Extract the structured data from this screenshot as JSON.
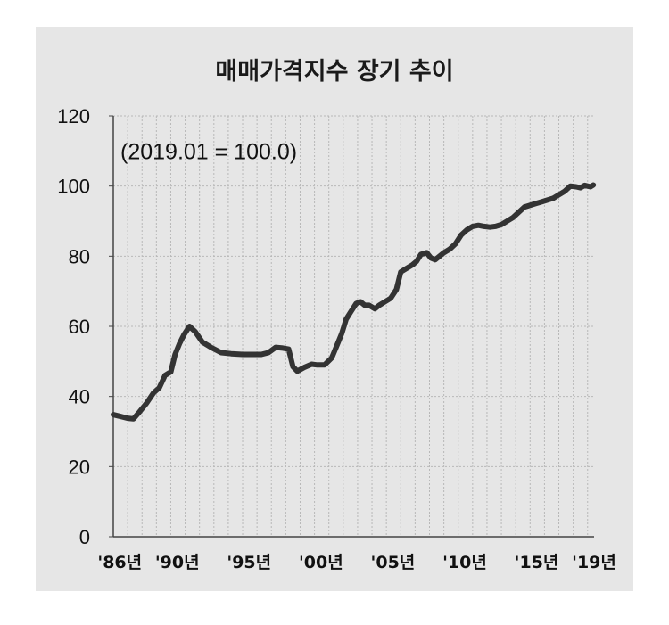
{
  "chart_data": {
    "type": "line",
    "title": "매매가격지수 장기 추이",
    "annotation": "(2019.01 = 100.0)",
    "ylim": [
      0,
      120
    ],
    "y_ticks": [
      "0",
      "20",
      "40",
      "60",
      "80",
      "100",
      "120"
    ],
    "x_tick_labels": [
      {
        "year": 1986,
        "label": "'86년"
      },
      {
        "year": 1990,
        "label": "'90년"
      },
      {
        "year": 1995,
        "label": "'95년"
      },
      {
        "year": 2000,
        "label": "'00년"
      },
      {
        "year": 2005,
        "label": "'05년"
      },
      {
        "year": 2010,
        "label": "'10년"
      },
      {
        "year": 2015,
        "label": "'15년"
      },
      {
        "year": 2019,
        "label": "'19년"
      }
    ],
    "grid": true,
    "series": [
      {
        "color": "#333333",
        "x": [
          1986.0,
          1986.5,
          1987.0,
          1987.4,
          1987.8,
          1988.3,
          1988.8,
          1989.2,
          1989.6,
          1990.0,
          1990.3,
          1990.6,
          1990.9,
          1991.3,
          1991.7,
          1992.2,
          1992.8,
          1993.5,
          1994.2,
          1995.0,
          1995.7,
          1996.3,
          1996.8,
          1997.3,
          1997.8,
          1998.2,
          1998.5,
          1998.8,
          1999.3,
          1999.8,
          2000.2,
          2000.7,
          2001.2,
          2001.6,
          2001.9,
          2002.2,
          2002.5,
          2002.9,
          2003.2,
          2003.5,
          2003.8,
          2004.2,
          2004.5,
          2004.9,
          2005.3,
          2005.7,
          2006.0,
          2006.4,
          2006.8,
          2007.1,
          2007.4,
          2007.8,
          2008.1,
          2008.4,
          2008.7,
          2009.0,
          2009.4,
          2009.8,
          2010.2,
          2010.6,
          2011.0,
          2011.4,
          2011.8,
          2012.2,
          2012.6,
          2013.0,
          2013.4,
          2013.8,
          2014.2,
          2014.6,
          2015.0,
          2015.4,
          2015.8,
          2016.2,
          2016.6,
          2017.0,
          2017.4,
          2017.8,
          2018.2,
          2018.5,
          2018.8,
          2019.0,
          2019.2,
          2019.4
        ],
        "values": [
          34.8,
          34.3,
          33.8,
          33.6,
          35.5,
          38.0,
          41.0,
          42.5,
          46.0,
          47.0,
          52.0,
          55.0,
          57.5,
          60.0,
          58.5,
          55.5,
          54.0,
          52.5,
          52.2,
          52.0,
          52.0,
          52.0,
          52.5,
          54.0,
          53.8,
          53.5,
          48.5,
          47.2,
          48.3,
          49.2,
          49.0,
          49.0,
          51.0,
          55.0,
          58.0,
          62.0,
          64.0,
          66.5,
          67.0,
          66.0,
          66.0,
          65.0,
          66.0,
          67.0,
          68.0,
          70.5,
          75.5,
          76.5,
          77.5,
          78.5,
          80.5,
          81.0,
          79.5,
          79.0,
          80.0,
          81.0,
          82.0,
          83.5,
          86.0,
          87.5,
          88.5,
          88.8,
          88.5,
          88.3,
          88.5,
          89.0,
          90.0,
          91.0,
          92.5,
          94.0,
          94.5,
          95.0,
          95.5,
          96.0,
          96.5,
          97.5,
          98.5,
          100.0,
          99.8,
          99.5,
          100.2,
          100.0,
          99.8,
          100.3
        ]
      }
    ]
  }
}
